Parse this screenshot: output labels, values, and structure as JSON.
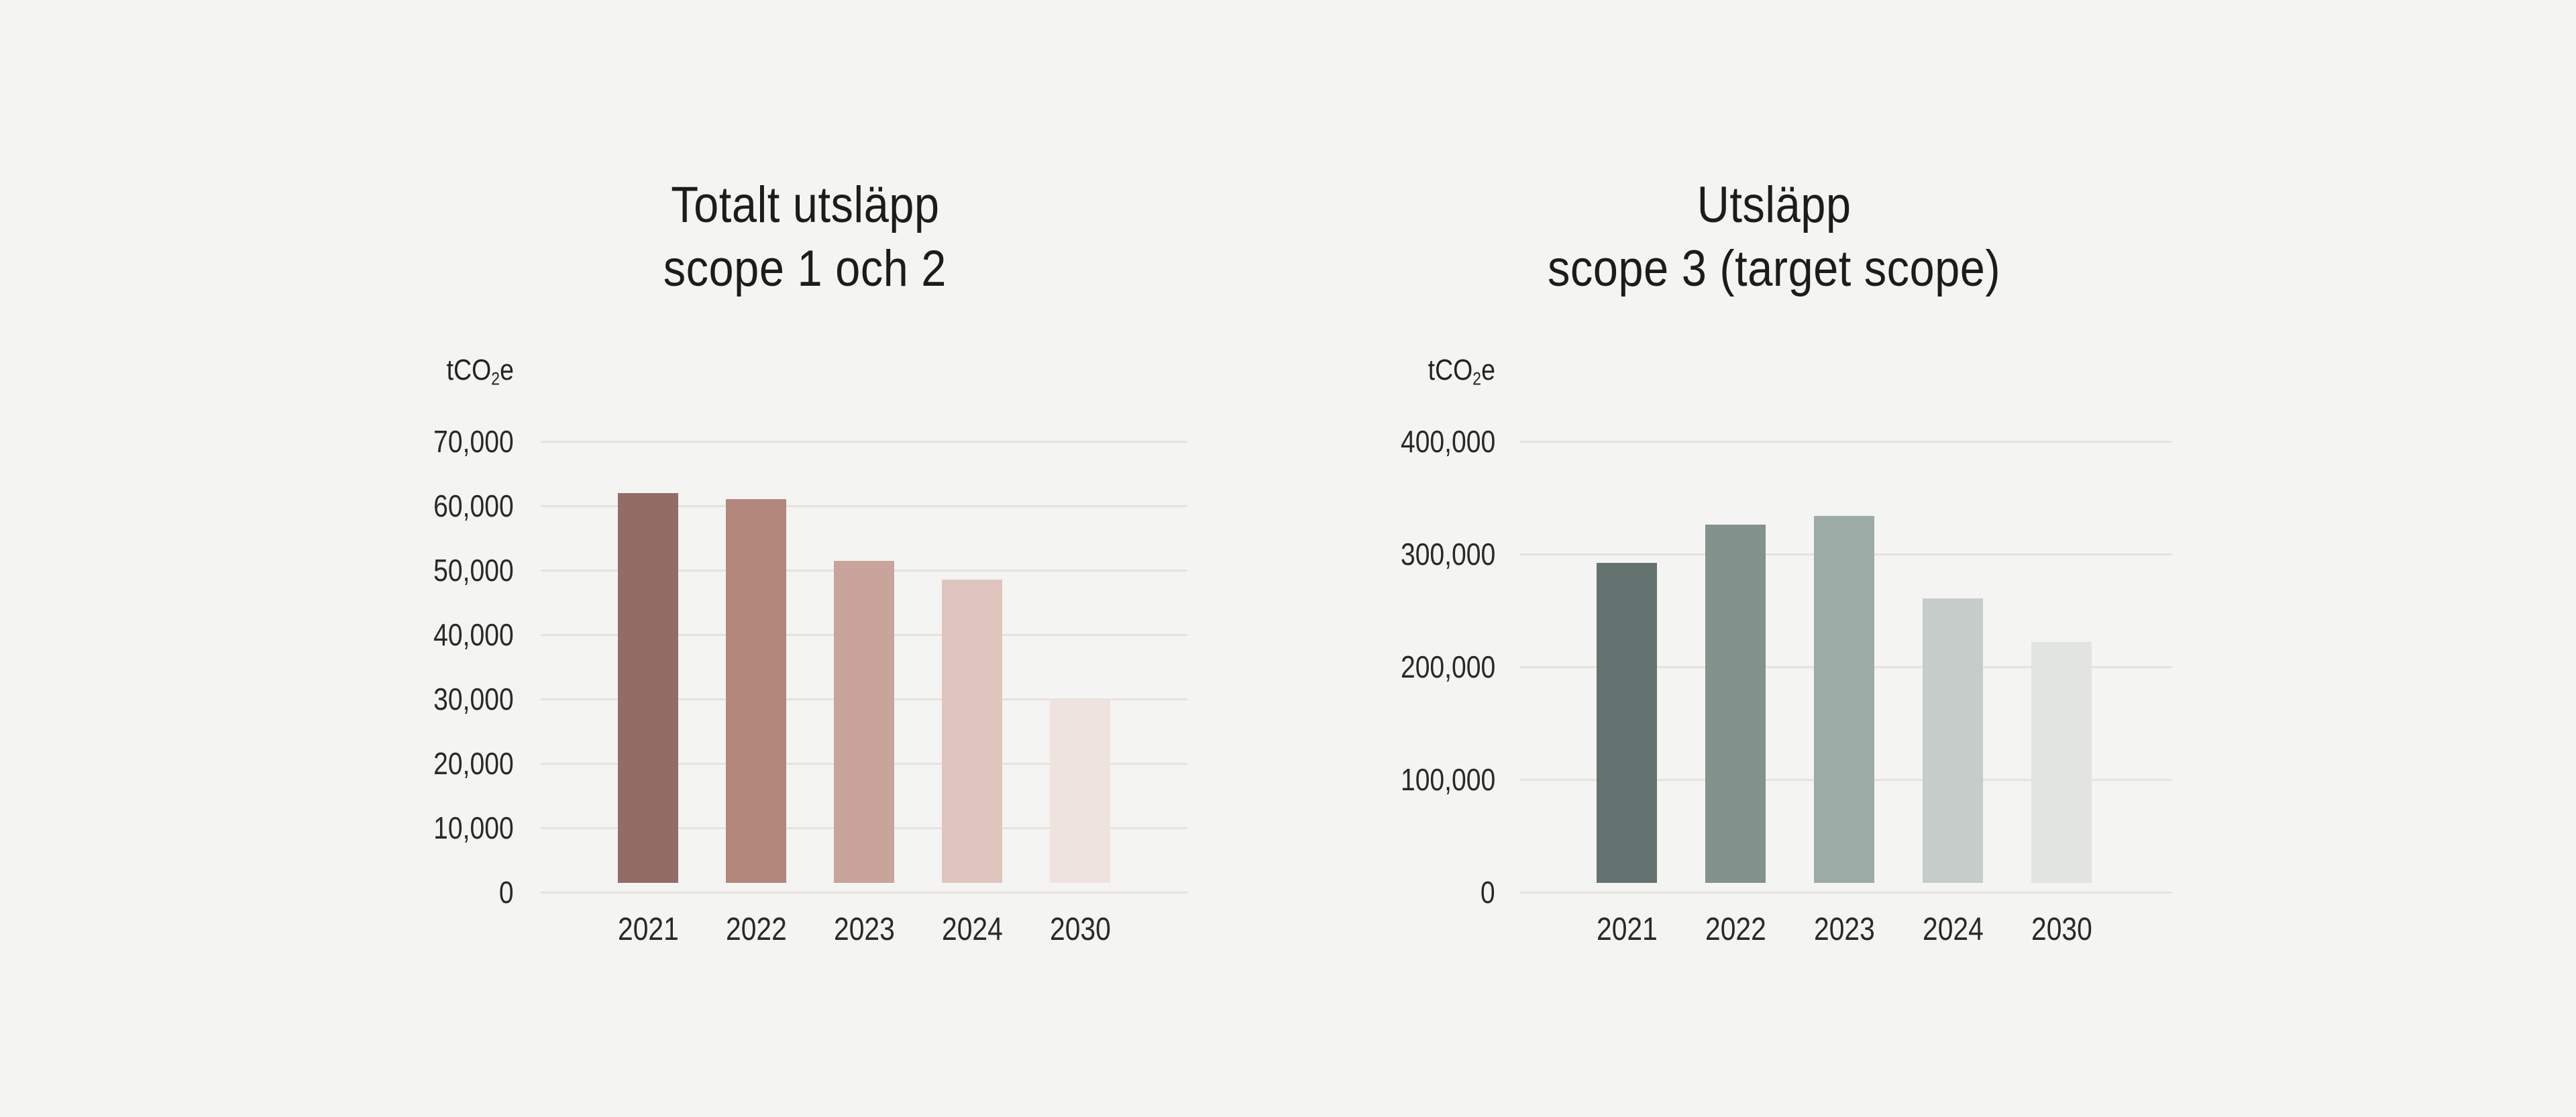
{
  "colors": {
    "background": "#f4f4f3",
    "gridline": "#e8e2da",
    "text": "#232220",
    "title_text": "#1d1c1a"
  },
  "chart_data": [
    {
      "type": "bar",
      "title_lines": [
        "Totalt utsläpp",
        "scope 1 och 2"
      ],
      "unit": {
        "base": "tCO",
        "sub": "2",
        "tail": "e"
      },
      "categories": [
        "2021",
        "2022",
        "2023",
        "2024",
        "2030"
      ],
      "values": [
        62000,
        61000,
        51500,
        48500,
        30000
      ],
      "bar_colors": [
        "#946c66",
        "#b3877c",
        "#c9a49a",
        "#dfc5be",
        "#eee3de"
      ],
      "ylim": [
        0,
        70000
      ],
      "ytick_step": 10000,
      "ytick_labels": [
        "0",
        "10,000",
        "20,000",
        "30,000",
        "40,000",
        "50,000",
        "60,000",
        "70,000"
      ],
      "grid": true,
      "legend": false
    },
    {
      "type": "bar",
      "title_lines": [
        "Utsläpp",
        "scope 3 (target scope)"
      ],
      "unit": {
        "base": "tCO",
        "sub": "2",
        "tail": "e"
      },
      "categories": [
        "2021",
        "2022",
        "2023",
        "2024",
        "2030"
      ],
      "values": [
        292000,
        326000,
        334000,
        261000,
        222000
      ],
      "bar_colors": [
        "#64736f",
        "#82928c",
        "#9daba6",
        "#c6ccc9",
        "#e2e4e2"
      ],
      "ylim": [
        0,
        400000
      ],
      "ytick_step": 100000,
      "ytick_labels": [
        "0",
        "100,000",
        "200,000",
        "300,000",
        "400,000"
      ],
      "grid": true,
      "legend": false
    }
  ]
}
